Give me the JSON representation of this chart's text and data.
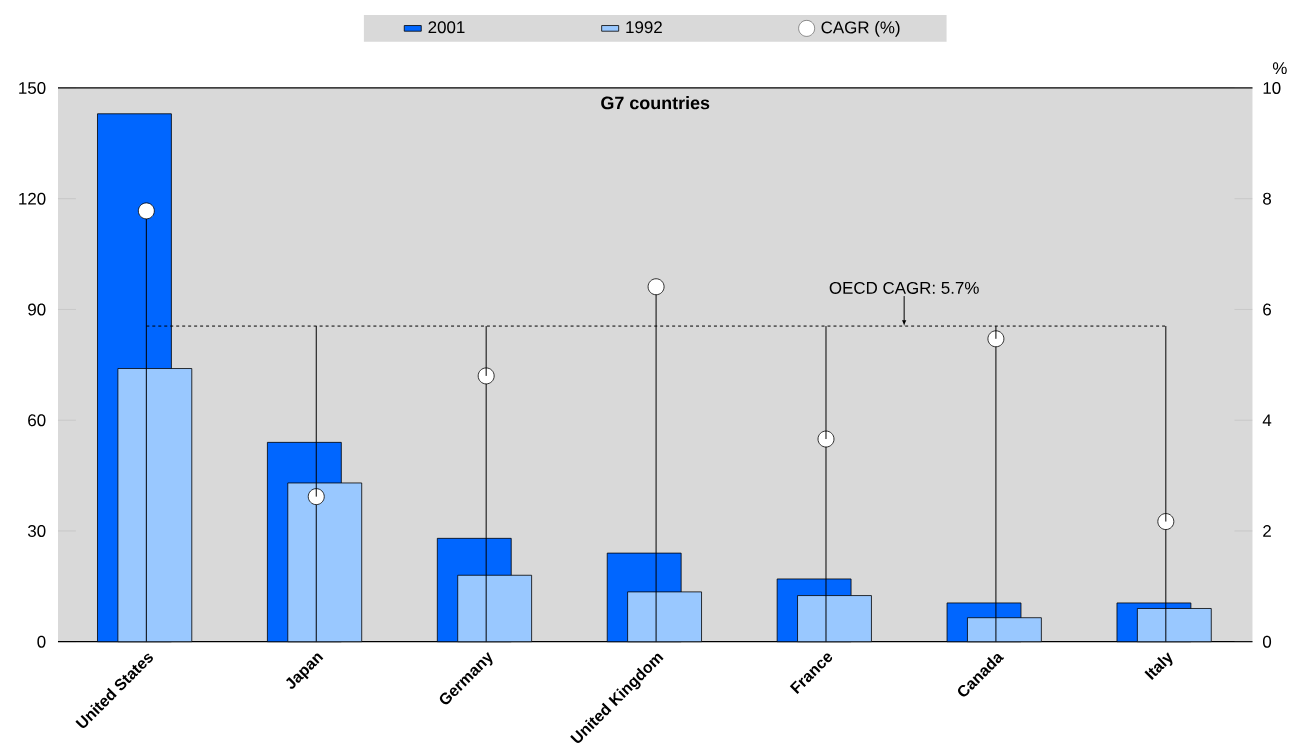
{
  "chart_data": {
    "type": "bar",
    "title": "G7 countries",
    "categories": [
      "United States",
      "Japan",
      "Germany",
      "United Kingdom",
      "France",
      "Canada",
      "Italy"
    ],
    "series": [
      {
        "name": "2001",
        "color": "#0066ff",
        "values": [
          143,
          54,
          28,
          24,
          17,
          10.5,
          10.5
        ]
      },
      {
        "name": "1992",
        "color": "#99c8ff",
        "values": [
          74,
          43,
          18,
          13.5,
          12.5,
          6.5,
          9
        ]
      },
      {
        "name": "CAGR (%)",
        "type": "lollipop",
        "axis": "y2",
        "color": "#ffffff",
        "values": [
          7.78,
          2.62,
          4.8,
          6.41,
          3.66,
          5.47,
          2.17
        ]
      }
    ],
    "ylim": [
      0,
      150
    ],
    "yticks": [
      0,
      30,
      60,
      90,
      120,
      150
    ],
    "y2lim": [
      0,
      10
    ],
    "y2ticks": [
      0,
      2,
      4,
      6,
      8,
      10
    ],
    "y2label": "%",
    "ref_lines": [
      {
        "axis": "y2",
        "value": 5.7,
        "label": "OECD CAGR: 5.7%",
        "line_style": "dashed",
        "color": "#000000"
      }
    ],
    "legend": "top",
    "grid": false
  }
}
